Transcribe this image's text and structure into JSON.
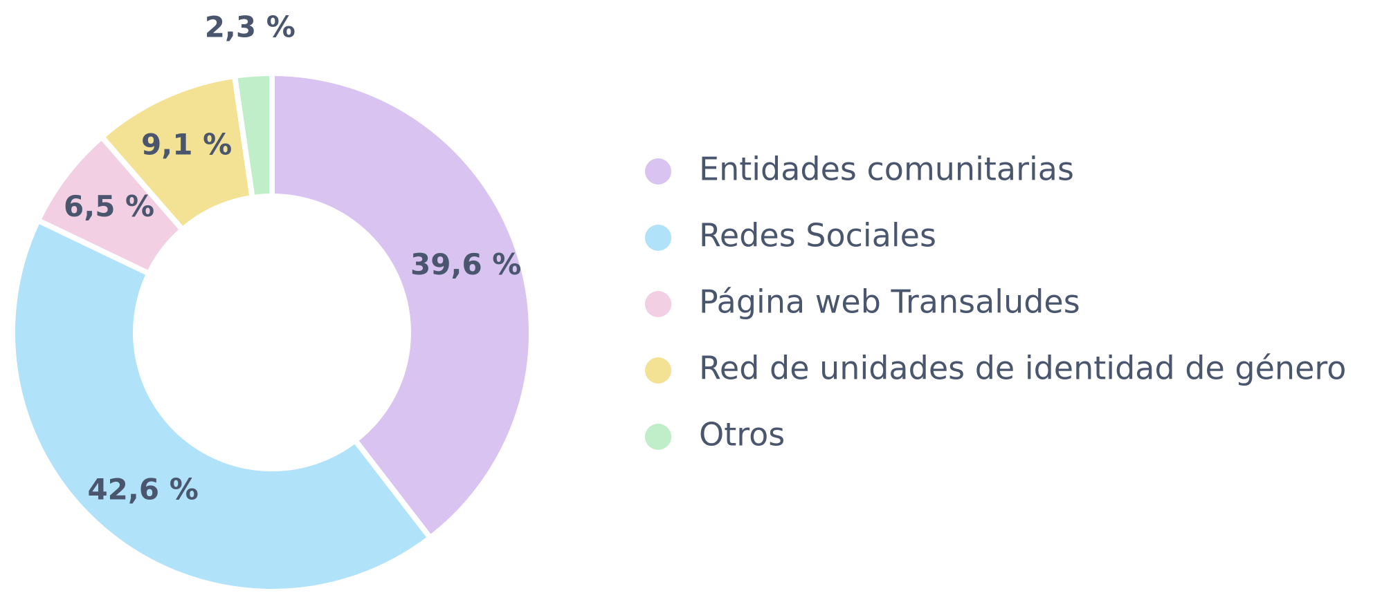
{
  "chart_data": {
    "type": "donut",
    "categories": [
      "Entidades comunitarias",
      "Redes Sociales",
      "Página web Transaludes",
      "Red de unidades de identidad de género",
      "Otros"
    ],
    "values": [
      39.6,
      42.6,
      6.5,
      9.1,
      2.3
    ],
    "value_labels": [
      "39,6 %",
      "42,6 %",
      "6,5 %",
      "9,1 %",
      "2,3 %"
    ],
    "colors": [
      "#d9c3f0",
      "#b0e2f9",
      "#f2cfe3",
      "#f3e194",
      "#c0eec9"
    ],
    "legend": "right"
  }
}
